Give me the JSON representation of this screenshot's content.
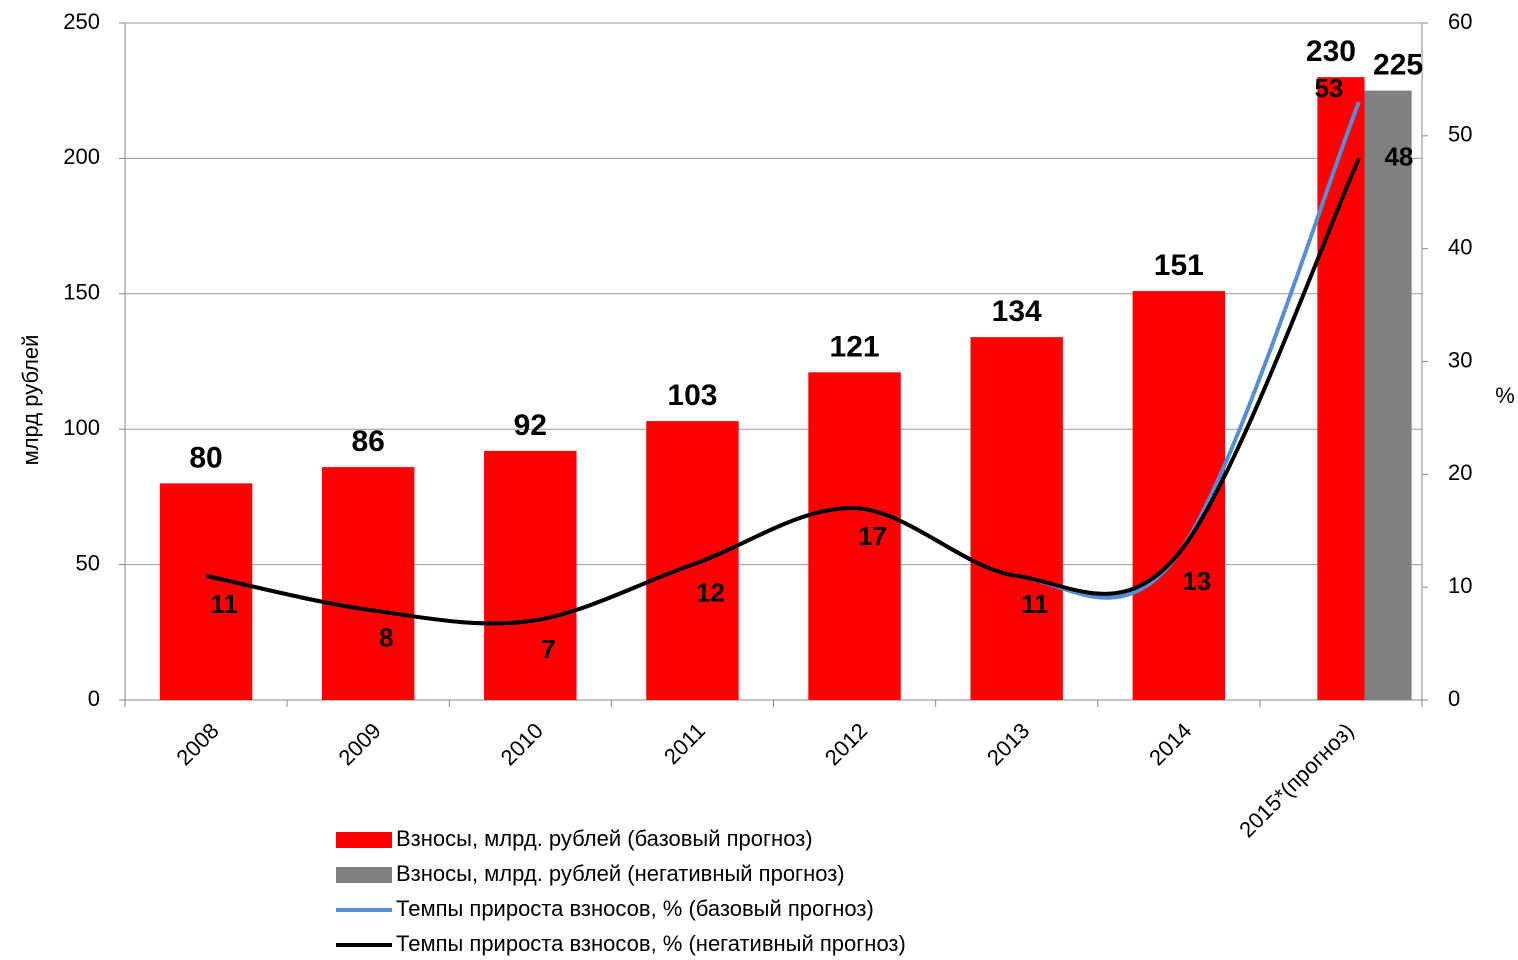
{
  "chart_data": {
    "type": "bar_line",
    "categories": [
      "2008",
      "2009",
      "2010",
      "2011",
      "2012",
      "2013",
      "2014",
      "2015*(прогноз)"
    ],
    "series": [
      {
        "name": "Взносы, млрд. рублей (базовый прогноз)",
        "color": "#ff0000",
        "type": "bar",
        "values": [
          80,
          86,
          92,
          103,
          121,
          134,
          151,
          230
        ]
      },
      {
        "name": "Взносы, млрд. рублей (негативный прогноз)",
        "color": "#808080",
        "type": "bar",
        "values": [
          null,
          null,
          null,
          null,
          null,
          null,
          null,
          225
        ]
      },
      {
        "name": "Темпы прироста взносов, % (базовый прогноз)",
        "color": "#558ed5",
        "type": "line",
        "axis": "y2",
        "values": [
          11,
          8,
          7,
          12,
          17,
          11,
          13,
          53
        ]
      },
      {
        "name": "Темпы прироста взносов, % (негативный прогноз)",
        "color": "#000000",
        "type": "line",
        "axis": "y2",
        "values": [
          11,
          8,
          7,
          12,
          17,
          11,
          13,
          48
        ]
      }
    ],
    "ylabel": "млрд рублей",
    "y2label": "%",
    "ylim": [
      0,
      250
    ],
    "yticks": [
      0,
      50,
      100,
      150,
      200,
      250
    ],
    "y2lim": [
      0,
      60
    ],
    "y2ticks": [
      0,
      10,
      20,
      30,
      40,
      50,
      60
    ],
    "grid": true,
    "legend": "bottom"
  }
}
